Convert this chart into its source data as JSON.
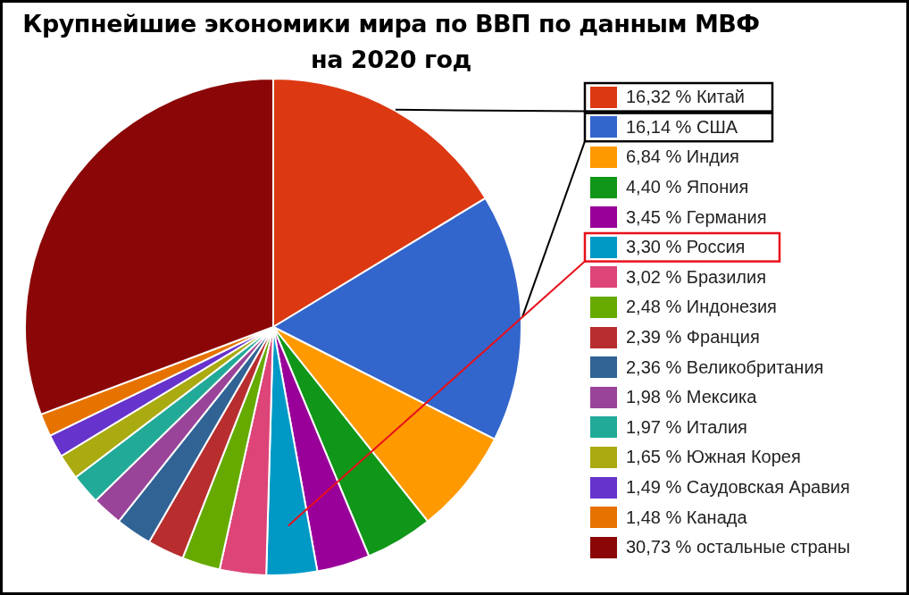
{
  "chart_data": {
    "type": "pie",
    "title": "Крупнейшие экономики мира по ВВП по данным МВФ на 2020 год",
    "categories": [
      "Китай",
      "США",
      "Индия",
      "Япония",
      "Германия",
      "Россия",
      "Бразилия",
      "Индонезия",
      "Франция",
      "Великобритания",
      "Мексика",
      "Италия",
      "Южная Корея",
      "Саудовская Аравия",
      "Канада",
      "остальные страны"
    ],
    "values": [
      16.32,
      16.14,
      6.84,
      4.4,
      3.45,
      3.3,
      3.02,
      2.48,
      2.39,
      2.36,
      1.98,
      1.97,
      1.65,
      1.49,
      1.48,
      30.73
    ],
    "value_labels": [
      "16,32 %",
      "16,14 %",
      "6,84 %",
      "4,40 %",
      "3,45 %",
      "3,30 %",
      "3,02 %",
      "2,48 %",
      "2,39 %",
      "2,36 %",
      "1,98 %",
      "1,97 %",
      "1,65 %",
      "1,49 %",
      "1,48 %",
      "30,73 %"
    ],
    "colors": [
      "#dc3912",
      "#3366cc",
      "#ff9900",
      "#109618",
      "#990099",
      "#0099c6",
      "#dd4477",
      "#66aa00",
      "#b82e2e",
      "#316395",
      "#994499",
      "#22aa99",
      "#aaaa11",
      "#6633cc",
      "#e67300",
      "#8b0707"
    ],
    "legend": "right"
  }
}
